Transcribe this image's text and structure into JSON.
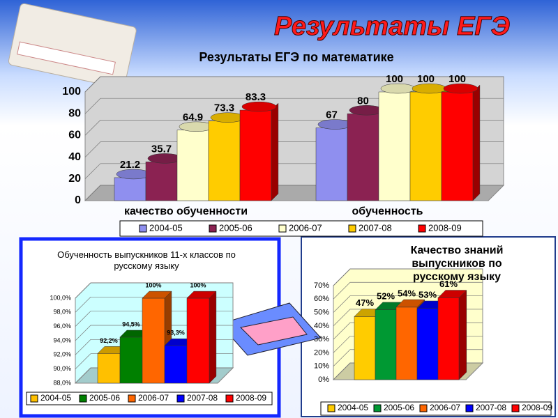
{
  "title": "Результаты ЕГЭ",
  "chart_data": [
    {
      "type": "bar",
      "title": "Результаты ЕГЭ по математике",
      "categories": [
        "качество обученности",
        "обученность"
      ],
      "series": [
        {
          "name": "2004-05",
          "color": "#8f8fef",
          "values": [
            21.2,
            67
          ]
        },
        {
          "name": "2005-06",
          "color": "#8b2252",
          "values": [
            35.7,
            80
          ]
        },
        {
          "name": "2006-07",
          "color": "#ffffcc",
          "values": [
            64.9,
            100
          ]
        },
        {
          "name": "2007-08",
          "color": "#ffcc00",
          "values": [
            73.3,
            100
          ]
        },
        {
          "name": "2008-09",
          "color": "#ff0000",
          "values": [
            83.3,
            100
          ]
        }
      ],
      "ylim": [
        0,
        100
      ],
      "yticks": [
        0,
        20,
        40,
        60,
        80,
        100
      ],
      "grid": true,
      "legend": "bottom"
    },
    {
      "type": "bar",
      "title": "Обученность выпускников 11-х классов по русскому языку",
      "categories": [
        null
      ],
      "series": [
        {
          "name": "2004-05",
          "color": "#ffc000",
          "values": [
            92.2
          ],
          "value_labels": [
            "92,2%"
          ]
        },
        {
          "name": "2005-06",
          "color": "#008000",
          "values": [
            94.5
          ],
          "value_labels": [
            "94,5%"
          ]
        },
        {
          "name": "2006-07",
          "color": "#ff6600",
          "values": [
            100
          ],
          "value_labels": [
            "100%"
          ]
        },
        {
          "name": "2007-08",
          "color": "#0000ff",
          "values": [
            93.3
          ],
          "value_labels": [
            "93,3%"
          ]
        },
        {
          "name": "2008-09",
          "color": "#ff0000",
          "values": [
            100
          ],
          "value_labels": [
            "100%"
          ]
        }
      ],
      "ylim": [
        88,
        100
      ],
      "yticks": [
        {
          "value": 88,
          "label": "88,0%"
        },
        {
          "value": 90,
          "label": "90,0%"
        },
        {
          "value": 92,
          "label": "92,0%"
        },
        {
          "value": 94,
          "label": "94,0%"
        },
        {
          "value": 96,
          "label": "96,0%"
        },
        {
          "value": 98,
          "label": "98,0%"
        },
        {
          "value": 100,
          "label": "100,0%"
        }
      ],
      "grid": true,
      "legend": "bottom"
    },
    {
      "type": "bar",
      "title": "Качество знаний выпускников по русскому языку",
      "categories": [
        null
      ],
      "series": [
        {
          "name": "2004-05",
          "color": "#ffcc00",
          "values": [
            47
          ],
          "value_labels": [
            "47%"
          ]
        },
        {
          "name": "2005-06",
          "color": "#009933",
          "values": [
            52
          ],
          "value_labels": [
            "52%"
          ]
        },
        {
          "name": "2006-07",
          "color": "#ff6600",
          "values": [
            54
          ],
          "value_labels": [
            "54%"
          ]
        },
        {
          "name": "2007-08",
          "color": "#0000ff",
          "values": [
            53
          ],
          "value_labels": [
            "53%"
          ]
        },
        {
          "name": "2008-09",
          "color": "#ff0000",
          "values": [
            61
          ],
          "value_labels": [
            "61%"
          ]
        }
      ],
      "ylim": [
        0,
        70
      ],
      "yticks": [
        {
          "value": 0,
          "label": "0%"
        },
        {
          "value": 10,
          "label": "10%"
        },
        {
          "value": 20,
          "label": "20%"
        },
        {
          "value": 30,
          "label": "30%"
        },
        {
          "value": 40,
          "label": "40%"
        },
        {
          "value": 50,
          "label": "50%"
        },
        {
          "value": 60,
          "label": "60%"
        },
        {
          "value": 70,
          "label": "70%"
        }
      ],
      "grid": true,
      "legend": "bottom"
    }
  ]
}
